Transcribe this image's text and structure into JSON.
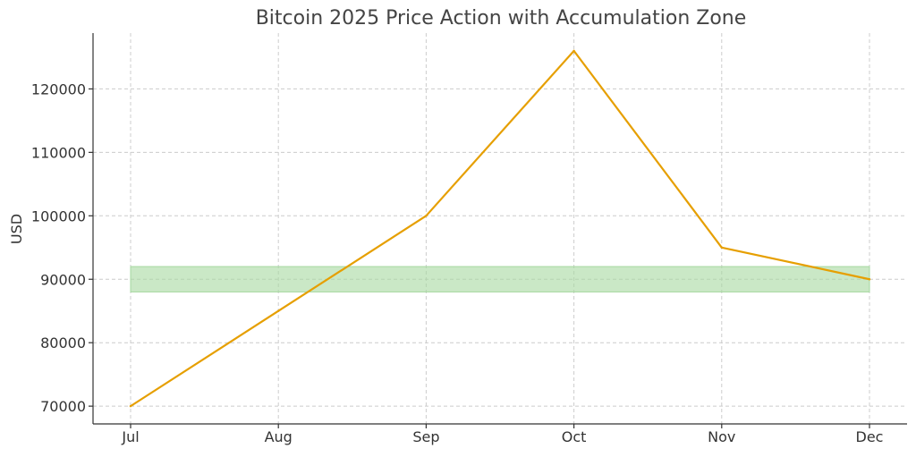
{
  "chart_data": {
    "type": "line",
    "title": "Bitcoin 2025 Price Action with Accumulation Zone",
    "xlabel": "",
    "ylabel": "USD",
    "categories": [
      "Jul",
      "Aug",
      "Sep",
      "Oct",
      "Nov",
      "Dec"
    ],
    "series": [
      {
        "values": [
          70000,
          85000,
          100000,
          126000,
          95000,
          90000
        ],
        "color": "#E69F00"
      }
    ],
    "accumulation_zone": {
      "y_low": 88000,
      "y_high": 92000,
      "x_start": "Jul",
      "x_end": "Dec",
      "color": "#a6d8a0"
    },
    "yticks": [
      70000,
      80000,
      90000,
      100000,
      110000,
      120000
    ],
    "ylim": [
      67200,
      128800
    ],
    "grid": true
  }
}
